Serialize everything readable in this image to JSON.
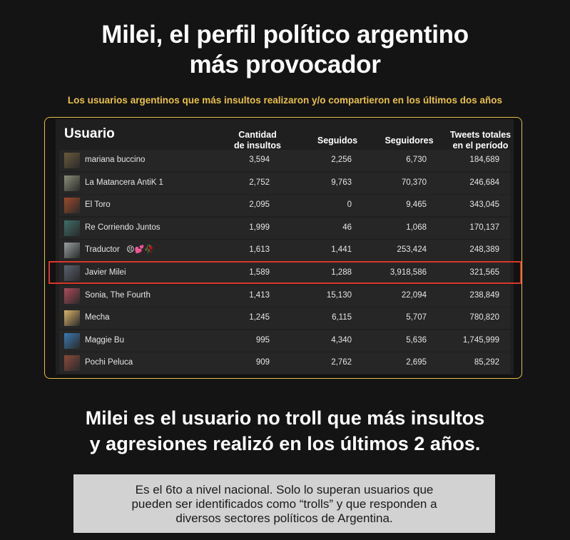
{
  "title_line1": "Milei, el perfil político argentino",
  "title_line2": "más provocador",
  "subtitle": "Los usuarios argentinos que más insultos realizaron y/o compartieron en los últimos dos años",
  "table": {
    "headers": {
      "user": "Usuario",
      "insults_l1": "Cantidad",
      "insults_l2": "de insultos",
      "following": "Seguidos",
      "followers": "Seguidores",
      "tweets_l1": "Tweets totales",
      "tweets_l2": "en el período"
    },
    "rows": [
      {
        "name": "mariana buccino",
        "insults": "3,594",
        "following": "2,256",
        "followers": "6,730",
        "tweets": "184,689",
        "avatar": "#6b5a3a"
      },
      {
        "name": "La Matancera AntiK 1",
        "insults": "2,752",
        "following": "9,763",
        "followers": "70,370",
        "tweets": "246,684",
        "avatar": "#8c8f7a"
      },
      {
        "name": "El Toro",
        "insults": "2,095",
        "following": "0",
        "followers": "9,465",
        "tweets": "343,045",
        "avatar": "#a04a2a"
      },
      {
        "name": "Re Corriendo Juntos",
        "insults": "1,999",
        "following": "46",
        "followers": "1,068",
        "tweets": "170,137",
        "avatar": "#3d6f6a"
      },
      {
        "name": "Traductor",
        "insults": "1,613",
        "following": "1,441",
        "followers": "253,424",
        "tweets": "248,389",
        "avatar": "#9aa0a0",
        "emojis": "😣💕🥀"
      },
      {
        "name": "Javier Milei",
        "insults": "1,589",
        "following": "1,288",
        "followers": "3,918,586",
        "tweets": "321,565",
        "avatar": "#5a6270"
      },
      {
        "name": "Sonia, The Fourth",
        "insults": "1,413",
        "following": "15,130",
        "followers": "22,094",
        "tweets": "238,849",
        "avatar": "#b04a5a"
      },
      {
        "name": "Mecha",
        "insults": "1,245",
        "following": "6,115",
        "followers": "5,707",
        "tweets": "780,820",
        "avatar": "#d9b46a"
      },
      {
        "name": "Maggie Bu",
        "insults": "995",
        "following": "4,340",
        "followers": "5,636",
        "tweets": "1,745,999",
        "avatar": "#3a7ab0"
      },
      {
        "name": "Pochi Peluca",
        "insults": "909",
        "following": "2,762",
        "followers": "2,695",
        "tweets": "85,292",
        "avatar": "#8a4a3a"
      }
    ]
  },
  "bottom_line1": "Milei es el usuario no troll que más insultos",
  "bottom_line2": "y agresiones realizó en los últimos 2 años.",
  "note_line1": "Es el 6to a nivel nacional. Solo lo superan usuarios que",
  "note_line2": "pueden ser identificados como “trolls” y que responden a",
  "note_line3": "diversos sectores políticos de Argentina.",
  "colors": {
    "accent": "#e8c04a",
    "highlight": "#d9362b"
  }
}
